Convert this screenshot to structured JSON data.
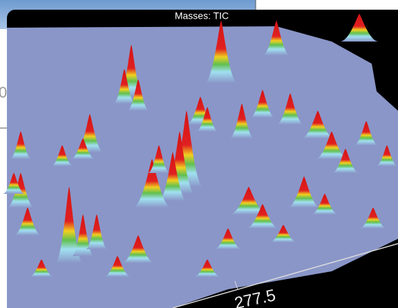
{
  "window": {
    "title": "Masses: TIC"
  },
  "axis": {
    "tick_label": "277.5"
  },
  "background_window": {
    "label": "0"
  }
}
